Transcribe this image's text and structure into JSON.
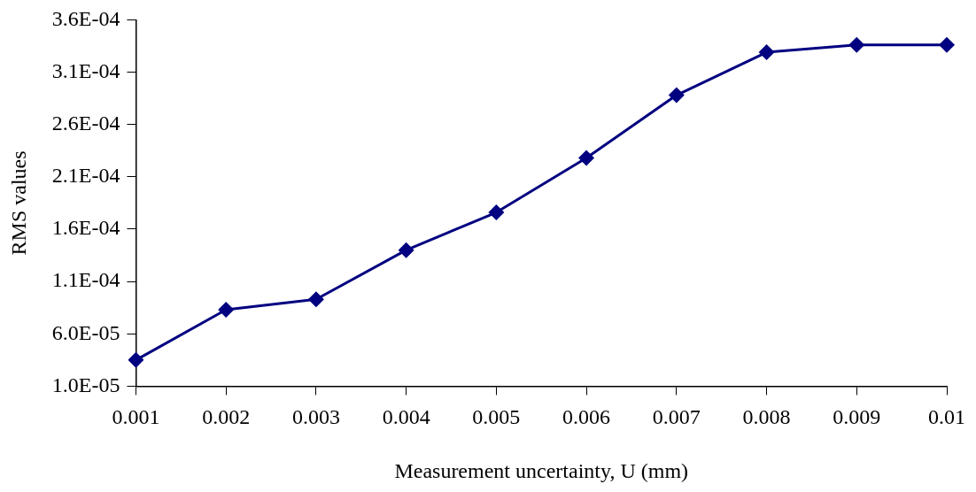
{
  "chart_data": {
    "type": "line",
    "xlabel": "Measurement uncertainty, U (mm)",
    "ylabel": "RMS values",
    "categories": [
      "0.001",
      "0.002",
      "0.003",
      "0.004",
      "0.005",
      "0.006",
      "0.007",
      "0.008",
      "0.009",
      "0.01"
    ],
    "series": [
      {
        "color": "#000080",
        "values": [
          3.5e-05,
          8.3e-05,
          9.3e-05,
          0.00014,
          0.000176,
          0.000228,
          0.000288,
          0.000329,
          0.000336,
          0.000336
        ]
      }
    ],
    "ylim": [
      1e-05,
      0.00036
    ],
    "yticks": [
      {
        "value": 1e-05,
        "label": "1.0E-05"
      },
      {
        "value": 6e-05,
        "label": "6.0E-05"
      },
      {
        "value": 0.00011,
        "label": "1.1E-04"
      },
      {
        "value": 0.00016,
        "label": "1.6E-04"
      },
      {
        "value": 0.00021,
        "label": "2.1E-04"
      },
      {
        "value": 0.00026,
        "label": "2.6E-04"
      },
      {
        "value": 0.00031,
        "label": "3.1E-04"
      },
      {
        "value": 0.00036,
        "label": "3.6E-04"
      }
    ],
    "grid": false,
    "marker": "diamond",
    "line_style": "solid"
  }
}
